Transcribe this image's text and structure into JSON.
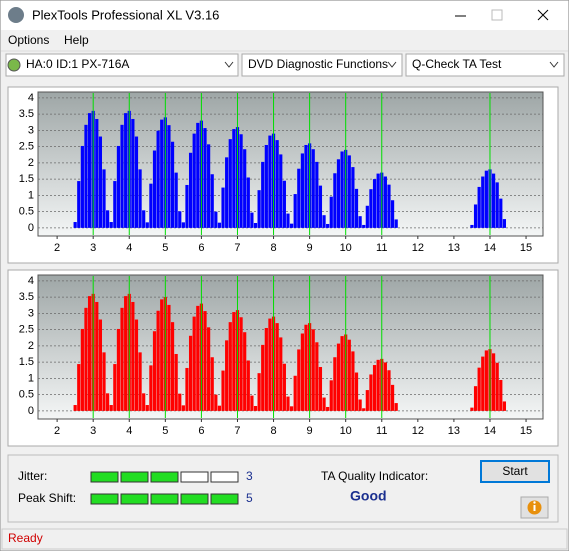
{
  "window": {
    "title": "PlexTools Professional XL V3.16"
  },
  "menu": [
    "Options",
    "Help"
  ],
  "toolbar": {
    "drive": "HA:0 ID:1  PX-716A",
    "function": "DVD Diagnostic Functions",
    "test": "Q-Check TA Test"
  },
  "chart_data": [
    {
      "type": "bar",
      "color": "#0000ff",
      "marker_color": "#00dd00",
      "markers": [
        3,
        4,
        5,
        6,
        7,
        8,
        9,
        10,
        11,
        14
      ],
      "xlim": [
        1.47,
        15.47
      ],
      "ylim": [
        -0.25,
        4.18
      ],
      "xticks": [
        2,
        3,
        4,
        5,
        6,
        7,
        8,
        9,
        10,
        11,
        12,
        13,
        14,
        15
      ],
      "yticks": [
        0,
        0.5,
        1,
        1.5,
        2,
        2.5,
        3,
        3.5,
        4
      ],
      "grid": true,
      "x": [
        2.5,
        2.6,
        2.7,
        2.8,
        2.9,
        3.0,
        3.1,
        3.2,
        3.3,
        3.4,
        3.5,
        3.6,
        3.7,
        3.8,
        3.9,
        4.0,
        4.1,
        4.2,
        4.3,
        4.4,
        4.5,
        4.6,
        4.7,
        4.8,
        4.9,
        5.0,
        5.1,
        5.2,
        5.3,
        5.4,
        5.5,
        5.6,
        5.7,
        5.8,
        5.9,
        6.0,
        6.1,
        6.2,
        6.3,
        6.4,
        6.5,
        6.6,
        6.7,
        6.8,
        6.9,
        7.0,
        7.1,
        7.2,
        7.3,
        7.4,
        7.5,
        7.6,
        7.7,
        7.8,
        7.9,
        8.0,
        8.1,
        8.2,
        8.3,
        8.4,
        8.5,
        8.6,
        8.7,
        8.8,
        8.9,
        9.0,
        9.1,
        9.2,
        9.3,
        9.4,
        9.5,
        9.6,
        9.7,
        9.8,
        9.9,
        10.0,
        10.1,
        10.2,
        10.3,
        10.4,
        10.5,
        10.6,
        10.7,
        10.8,
        10.9,
        11.0,
        11.1,
        11.2,
        11.3,
        11.4,
        13.5,
        13.6,
        13.7,
        13.8,
        13.9,
        14.0,
        14.1,
        14.2,
        14.3,
        14.4
      ],
      "values": [
        0.18,
        1.44,
        2.52,
        3.17,
        3.53,
        3.6,
        3.35,
        2.81,
        1.8,
        0.54,
        0.18,
        1.44,
        2.52,
        3.17,
        3.53,
        3.6,
        3.35,
        2.81,
        1.8,
        0.54,
        0.17,
        1.36,
        2.38,
        2.99,
        3.33,
        3.4,
        3.16,
        2.65,
        1.7,
        0.51,
        0.17,
        1.32,
        2.31,
        2.9,
        3.23,
        3.3,
        3.07,
        2.57,
        1.65,
        0.5,
        0.16,
        1.24,
        2.17,
        2.73,
        3.04,
        3.1,
        2.88,
        2.42,
        1.55,
        0.47,
        0.15,
        1.16,
        2.03,
        2.55,
        2.84,
        2.9,
        2.7,
        2.26,
        1.45,
        0.44,
        0.13,
        1.04,
        1.82,
        2.29,
        2.55,
        2.6,
        2.42,
        2.03,
        1.3,
        0.39,
        0.12,
        0.96,
        1.68,
        2.11,
        2.35,
        2.4,
        2.23,
        1.87,
        1.2,
        0.36,
        0.09,
        0.68,
        1.19,
        1.5,
        1.67,
        1.7,
        1.58,
        1.33,
        0.85,
        0.26,
        0.09,
        0.72,
        1.26,
        1.58,
        1.76,
        1.8,
        1.67,
        1.4,
        0.9,
        0.27
      ]
    },
    {
      "type": "bar",
      "color": "#ff0000",
      "marker_color": "#00dd00",
      "markers": [
        3,
        4,
        5,
        6,
        7,
        8,
        9,
        10,
        11,
        14
      ],
      "xlim": [
        1.47,
        15.47
      ],
      "ylim": [
        -0.25,
        4.18
      ],
      "xticks": [
        2,
        3,
        4,
        5,
        6,
        7,
        8,
        9,
        10,
        11,
        12,
        13,
        14,
        15
      ],
      "yticks": [
        0,
        0.5,
        1,
        1.5,
        2,
        2.5,
        3,
        3.5,
        4
      ],
      "grid": true,
      "x": [
        2.5,
        2.6,
        2.7,
        2.8,
        2.9,
        3.0,
        3.1,
        3.2,
        3.3,
        3.4,
        3.5,
        3.6,
        3.7,
        3.8,
        3.9,
        4.0,
        4.1,
        4.2,
        4.3,
        4.4,
        4.5,
        4.6,
        4.7,
        4.8,
        4.9,
        5.0,
        5.1,
        5.2,
        5.3,
        5.4,
        5.5,
        5.6,
        5.7,
        5.8,
        5.9,
        6.0,
        6.1,
        6.2,
        6.3,
        6.4,
        6.5,
        6.6,
        6.7,
        6.8,
        6.9,
        7.0,
        7.1,
        7.2,
        7.3,
        7.4,
        7.5,
        7.6,
        7.7,
        7.8,
        7.9,
        8.0,
        8.1,
        8.2,
        8.3,
        8.4,
        8.5,
        8.6,
        8.7,
        8.8,
        8.9,
        9.0,
        9.1,
        9.2,
        9.3,
        9.4,
        9.5,
        9.6,
        9.7,
        9.8,
        9.9,
        10.0,
        10.1,
        10.2,
        10.3,
        10.4,
        10.5,
        10.6,
        10.7,
        10.8,
        10.9,
        11.0,
        11.1,
        11.2,
        11.3,
        11.4,
        13.5,
        13.6,
        13.7,
        13.8,
        13.9,
        14.0,
        14.1,
        14.2,
        14.3,
        14.4
      ],
      "values": [
        0.18,
        1.44,
        2.52,
        3.17,
        3.53,
        3.6,
        3.35,
        2.81,
        1.8,
        0.54,
        0.18,
        1.44,
        2.52,
        3.17,
        3.53,
        3.6,
        3.35,
        2.81,
        1.8,
        0.54,
        0.18,
        1.4,
        2.45,
        3.08,
        3.43,
        3.5,
        3.26,
        2.73,
        1.75,
        0.53,
        0.17,
        1.32,
        2.31,
        2.9,
        3.23,
        3.3,
        3.07,
        2.57,
        1.65,
        0.5,
        0.16,
        1.24,
        2.17,
        2.73,
        3.04,
        3.1,
        2.88,
        2.42,
        1.55,
        0.47,
        0.15,
        1.16,
        2.03,
        2.55,
        2.84,
        2.9,
        2.7,
        2.26,
        1.45,
        0.44,
        0.14,
        1.08,
        1.89,
        2.38,
        2.65,
        2.7,
        2.51,
        2.11,
        1.35,
        0.41,
        0.12,
        0.94,
        1.65,
        2.07,
        2.3,
        2.35,
        2.19,
        1.83,
        1.18,
        0.35,
        0.08,
        0.64,
        1.12,
        1.41,
        1.57,
        1.6,
        1.49,
        1.25,
        0.8,
        0.24,
        0.1,
        0.76,
        1.33,
        1.67,
        1.86,
        1.9,
        1.77,
        1.48,
        0.95,
        0.29
      ]
    }
  ],
  "indicators": {
    "jitter": {
      "label": "Jitter:",
      "value": 3
    },
    "peak_shift": {
      "label": "Peak Shift:",
      "value": 5
    }
  },
  "ta_quality": {
    "label": "TA Quality Indicator:",
    "value": "Good"
  },
  "button": "Start",
  "status": "Ready"
}
